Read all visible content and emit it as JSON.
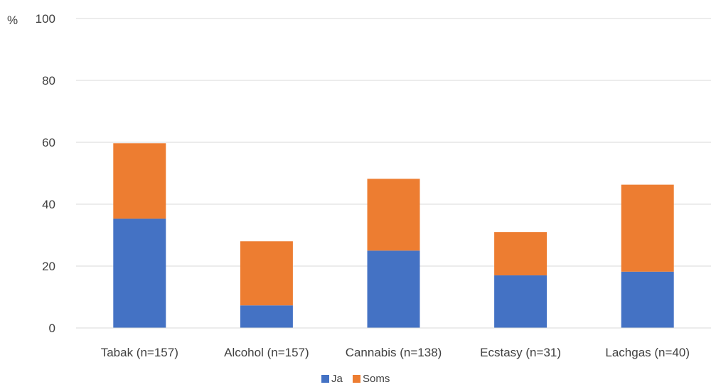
{
  "chart_data": {
    "type": "bar",
    "stacked": true,
    "title": "",
    "xlabel": "",
    "ylabel": "%",
    "ylim": [
      0,
      100
    ],
    "yticks": [
      0,
      20,
      40,
      60,
      80,
      100
    ],
    "grid": true,
    "legend_position": "bottom",
    "categories": [
      "Tabak (n=157)",
      "Alcohol (n=157)",
      "Cannabis (n=138)",
      "Ecstasy (n=31)",
      "Lachgas (n=40)"
    ],
    "series": [
      {
        "name": "Ja",
        "color": "#4472c4",
        "values": [
          35.3,
          7.3,
          25.0,
          17.0,
          18.2
        ]
      },
      {
        "name": "Soms",
        "color": "#ed7d31",
        "values": [
          24.4,
          20.7,
          23.2,
          14.0,
          28.1
        ]
      }
    ]
  }
}
